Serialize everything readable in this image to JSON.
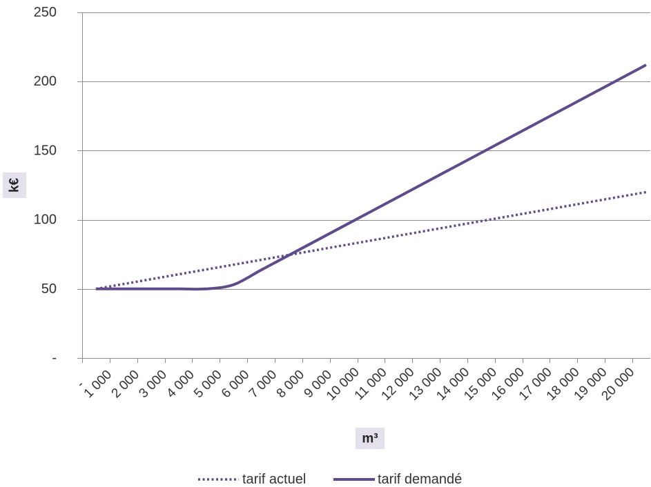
{
  "chart_data": {
    "type": "line",
    "xlabel": "m³",
    "ylabel": "k€",
    "categories": [
      "-",
      "1 000",
      "2 000",
      "3 000",
      "4 000",
      "5 000",
      "6 000",
      "7 000",
      "8 000",
      "9 000",
      "10 000",
      "11 000",
      "12 000",
      "13 000",
      "14 000",
      "15 000",
      "16 000",
      "17 000",
      "18 000",
      "19 000",
      "20 000"
    ],
    "ylim": [
      0,
      250
    ],
    "yticks": [
      0,
      50,
      100,
      150,
      200,
      250
    ],
    "ytick_labels": [
      "-",
      "50",
      "100",
      "150",
      "200",
      "250"
    ],
    "grid": "horizontal",
    "legend": "bottom",
    "smooth": true,
    "series": [
      {
        "name": "tarif actuel",
        "line_style": "dotted",
        "color": "#5f4b8b",
        "values": [
          50,
          53.5,
          57,
          60.5,
          64,
          67.5,
          71,
          74.5,
          78,
          81.5,
          85,
          88.5,
          92,
          95.5,
          99,
          102.5,
          106,
          109.5,
          113,
          116.5,
          120
        ]
      },
      {
        "name": "tarif demandé",
        "line_style": "solid",
        "color": "#5f4b8b",
        "values": [
          50,
          50,
          50,
          50,
          50,
          53,
          63.6,
          74.2,
          84.8,
          95.4,
          106,
          116.6,
          127.2,
          137.8,
          148.4,
          159,
          169.6,
          180.2,
          190.8,
          201.4,
          212
        ]
      }
    ]
  },
  "colors": {
    "grid": "#8c8c8c",
    "axis_title_box": "#e4e1ec"
  }
}
